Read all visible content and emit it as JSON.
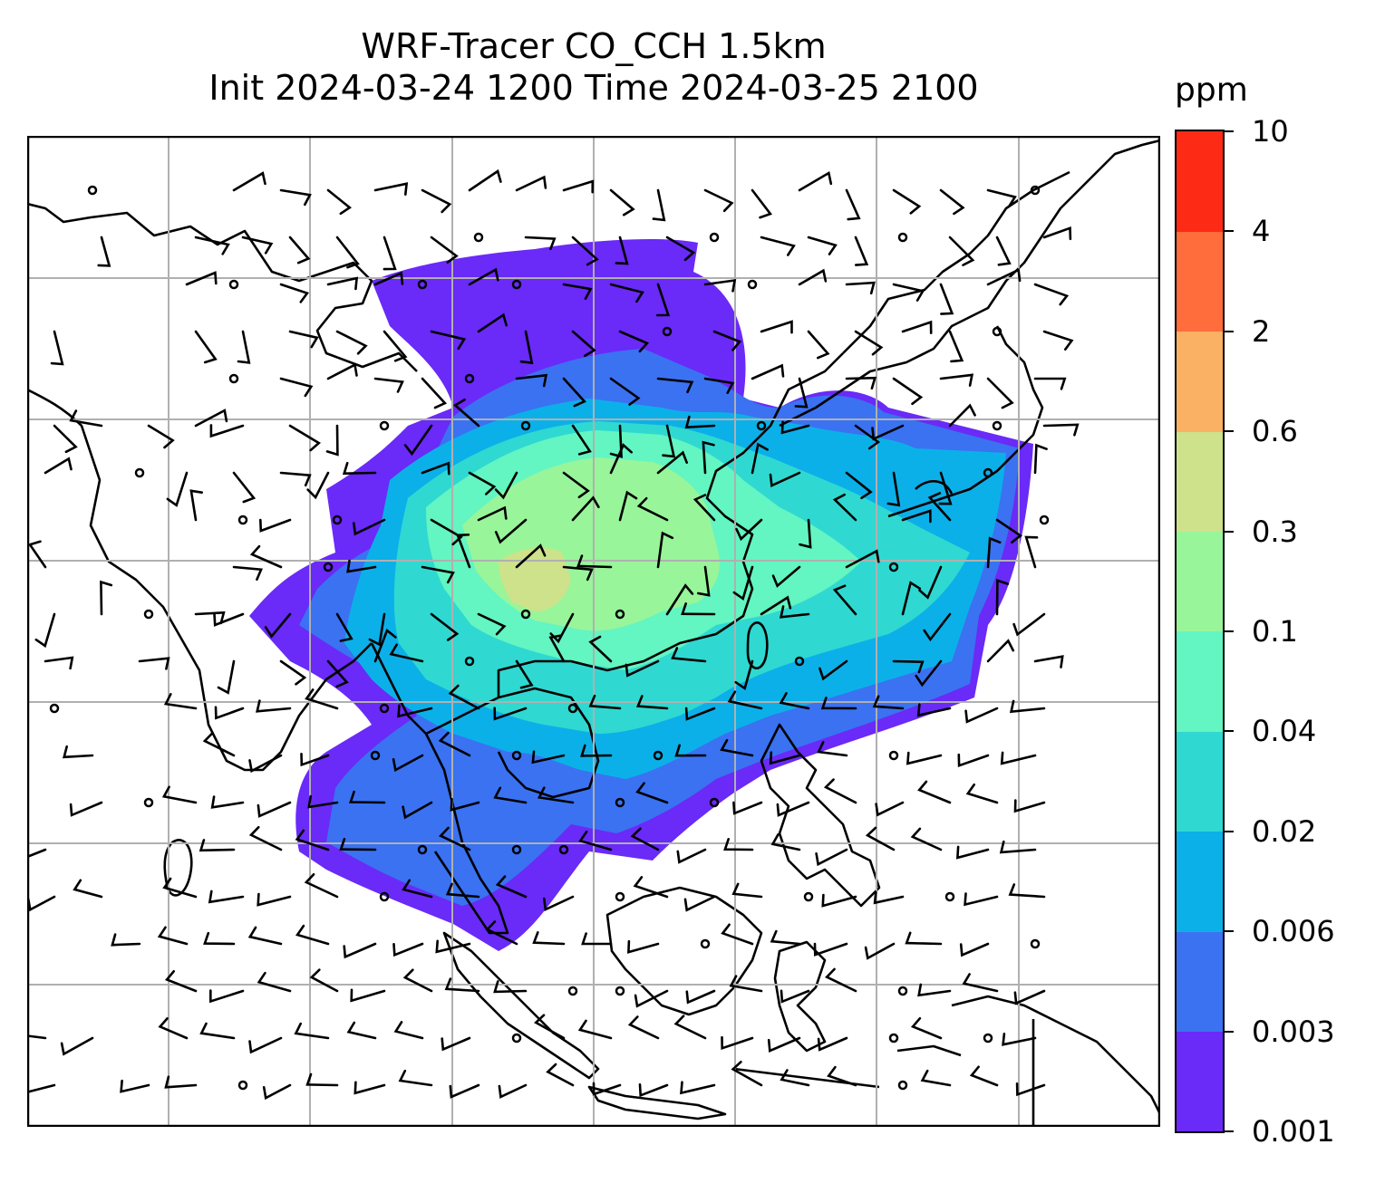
{
  "title": {
    "line1": "WRF-Tracer CO_CCH 1.5km",
    "line2": "Init 2024-03-24 1200 Time 2024-03-25 2100"
  },
  "colorbar": {
    "unit": "ppm",
    "ticks": [
      "10",
      "4",
      "2",
      "0.6",
      "0.3",
      "0.1",
      "0.04",
      "0.02",
      "0.006",
      "0.003",
      "0.001"
    ],
    "colors": [
      "#6a2af7",
      "#3a72f2",
      "#0cb0e8",
      "#2fd9d1",
      "#63f5c2",
      "#98f59a",
      "#cde28a",
      "#fbb163",
      "#ff6d3c",
      "#fd2b16"
    ]
  },
  "map": {
    "gridline_color": "#b0b0b0",
    "coastline_color": "#000000",
    "barb_color": "#000000"
  }
}
